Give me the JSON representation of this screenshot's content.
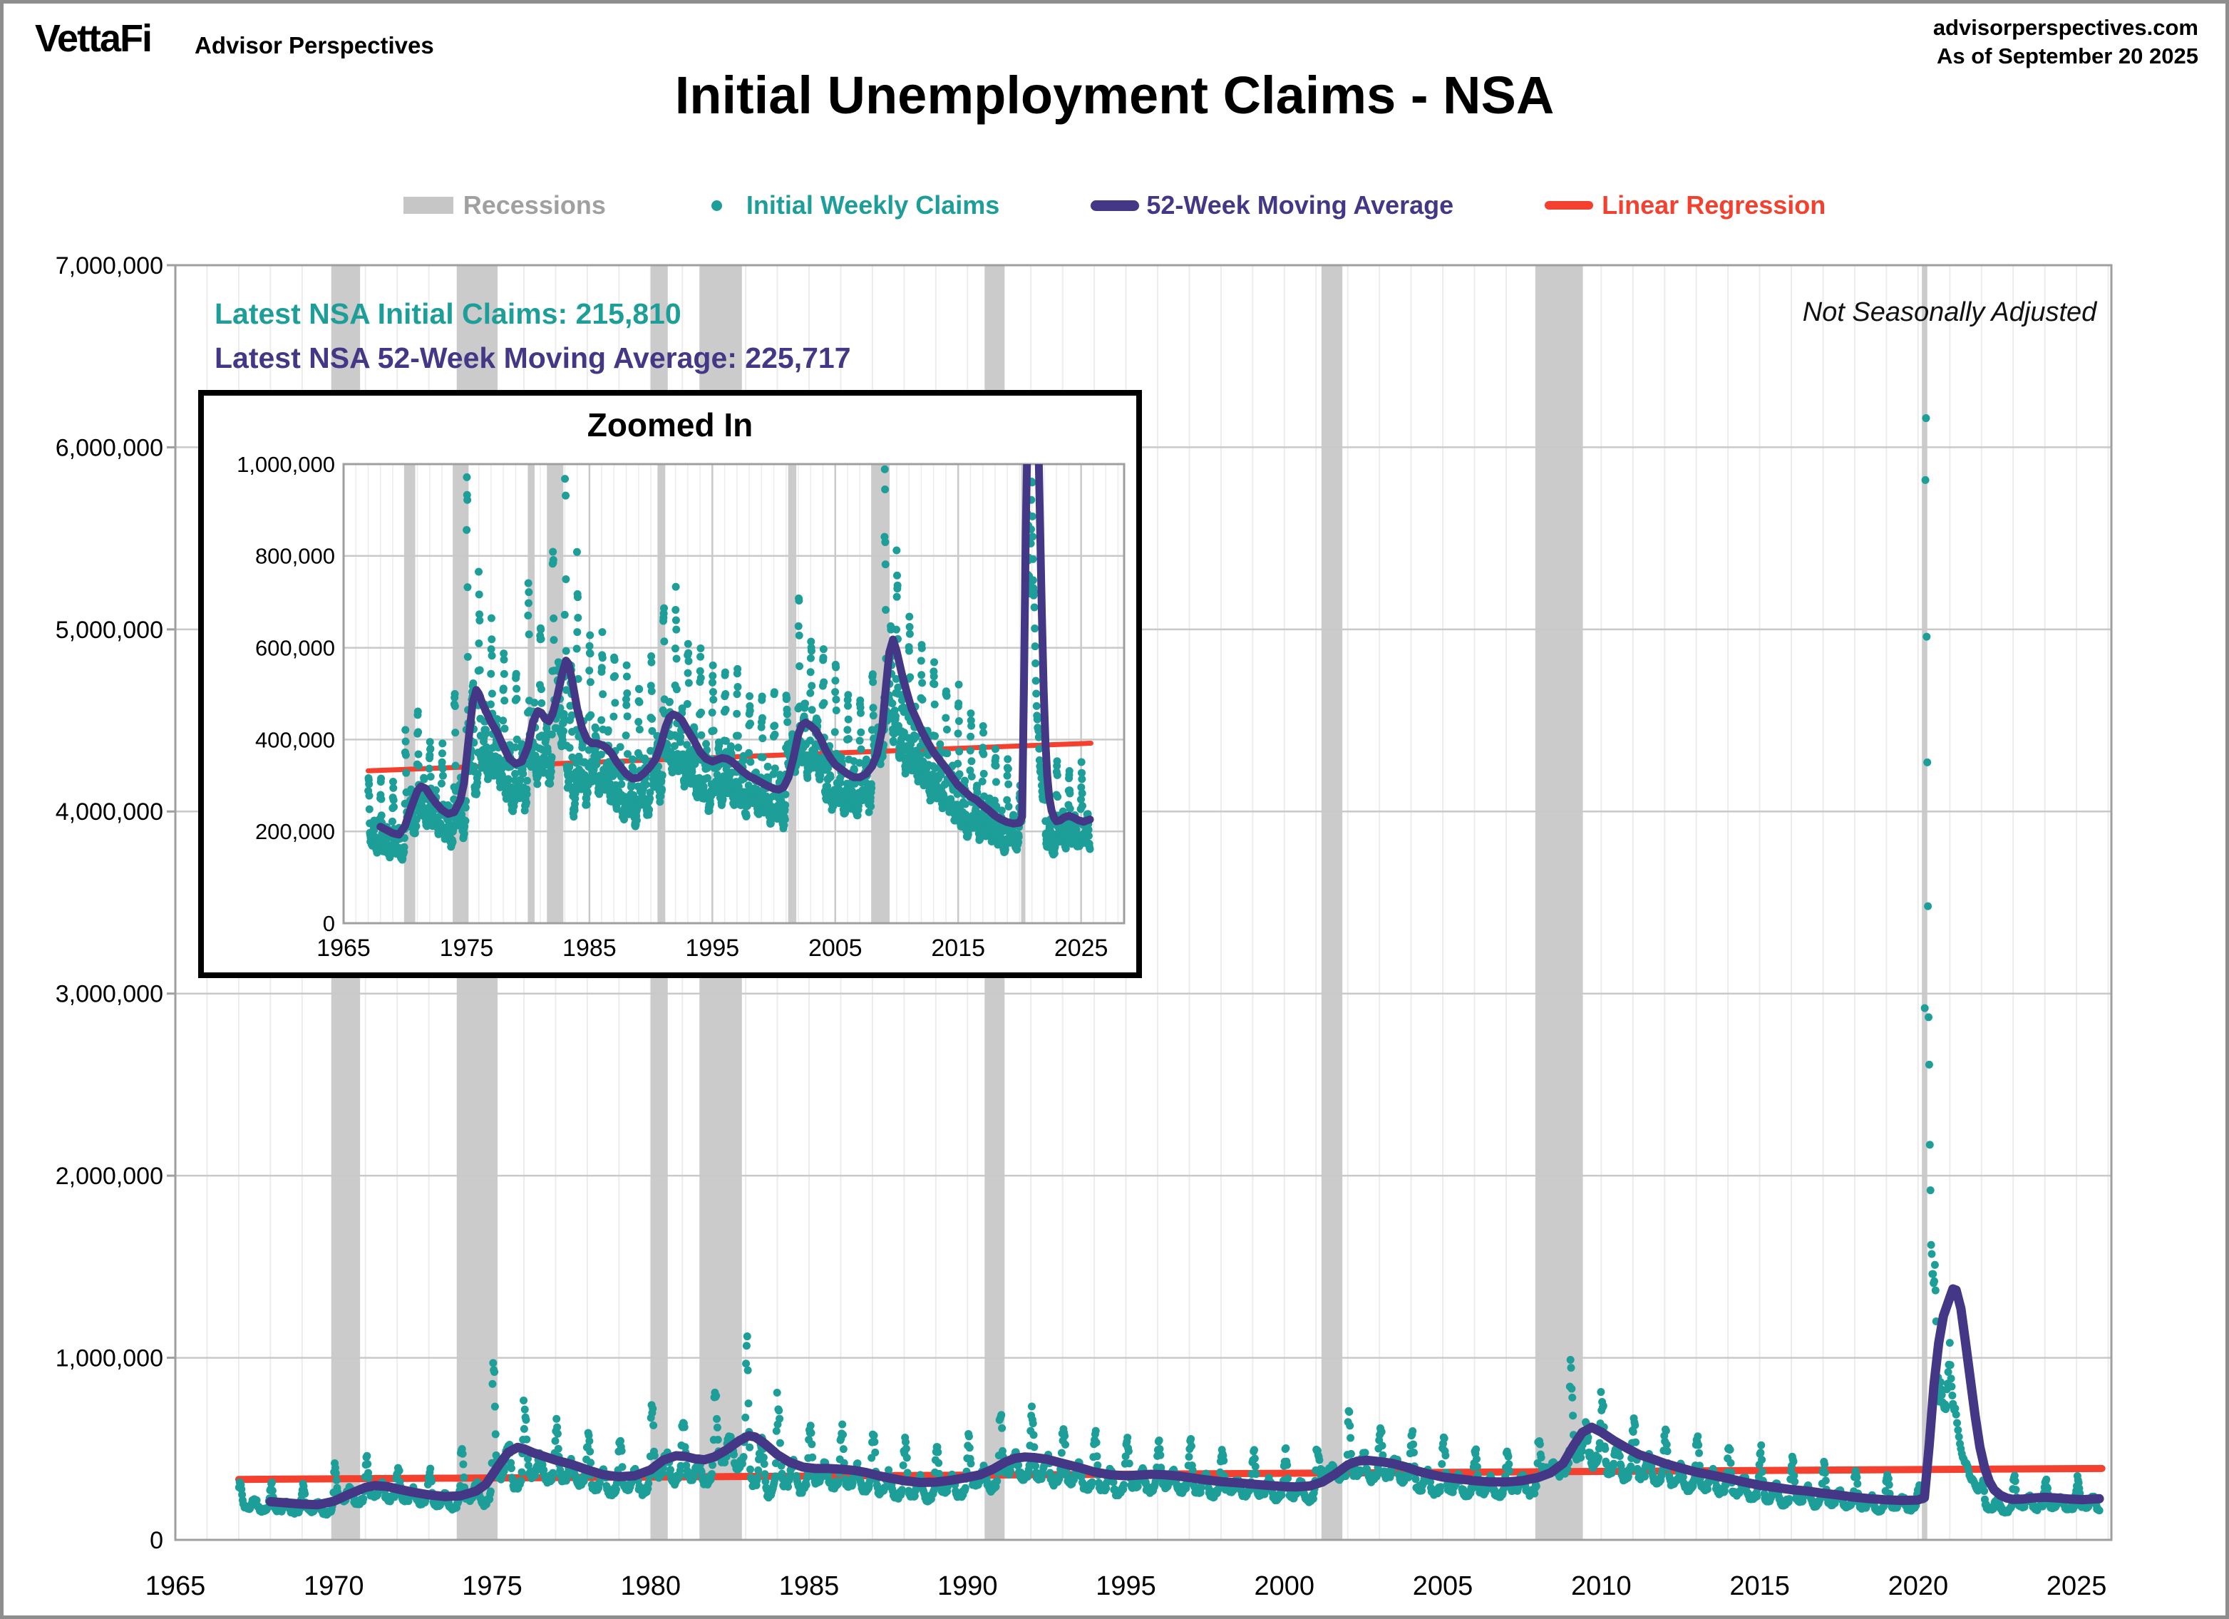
{
  "header": {
    "brand": "VettaFi",
    "brand_sub": "Advisor Perspectives",
    "site": "advisorperspectives.com",
    "as_of": "As of September 20 2025"
  },
  "title": "Initial Unemployment Claims - NSA",
  "inset_title": "Zoomed In",
  "legend": [
    {
      "id": "recessions",
      "label": "Recessions",
      "color": "#c6c6c6"
    },
    {
      "id": "weekly-claims",
      "label": "Initial Weekly Claims",
      "color": "#1d9e99"
    },
    {
      "id": "moving-average",
      "label": "52-Week Moving Average",
      "color": "#443786"
    },
    {
      "id": "linear-regression",
      "label": "Linear Regression",
      "color": "#f4402f"
    }
  ],
  "annotations": {
    "latest_claims_label": "Latest NSA Initial Claims: 215,810",
    "latest_ma_label": "Latest NSA 52-Week Moving Average: 225,717",
    "nsa_note": "Not Seasonally Adjusted"
  },
  "chart_data": {
    "type": "scatter",
    "title": "Initial Unemployment Claims - NSA",
    "series_names": [
      "Initial Weekly Claims",
      "52-Week Moving Average",
      "Linear Regression"
    ],
    "latest": {
      "initial_claims": 215810,
      "moving_average_52wk": 225717
    },
    "colors": {
      "scatter": "#1d9e99",
      "ma": "#443786",
      "regression": "#f4402f",
      "recession_band": "#cbcbcb",
      "grid": "#c9c9c9",
      "grid_faint": "#ececec",
      "axis": "#9f9f9f"
    },
    "main_axis": {
      "x_min": 1965,
      "x_max": 2026.1,
      "y_min": 0,
      "y_max": 7000000,
      "x_ticks": [
        1965,
        1970,
        1975,
        1980,
        1985,
        1990,
        1995,
        2000,
        2005,
        2010,
        2015,
        2020,
        2025
      ],
      "y_tick_labels": [
        "0",
        "1,000,000",
        "2,000,000",
        "3,000,000",
        "4,000,000",
        "5,000,000",
        "6,000,000",
        "7,000,000"
      ]
    },
    "inset_axis": {
      "x_min": 1965,
      "x_max": 2028.5,
      "y_min": 0,
      "y_max": 1000000,
      "x_ticks": [
        1965,
        1975,
        1985,
        1995,
        2005,
        2015,
        2025
      ],
      "y_tick_labels": [
        "0",
        "200,000",
        "400,000",
        "600,000",
        "800,000",
        "1,000,000"
      ]
    },
    "recessions": [
      [
        1969.92,
        1970.83
      ],
      [
        1973.88,
        1975.17
      ],
      [
        1980.0,
        1980.54
      ],
      [
        1981.54,
        1982.88
      ],
      [
        1990.54,
        1991.17
      ],
      [
        2001.17,
        2001.83
      ],
      [
        2007.92,
        2009.42
      ],
      [
        2020.12,
        2020.29
      ]
    ],
    "regression_thousands": {
      "x1": 1967.0,
      "y1": 332,
      "x2": 2025.8,
      "y2": 392
    },
    "ma_series_thousands": [
      [
        1968.0,
        210
      ],
      [
        1968.5,
        203
      ],
      [
        1969.0,
        196
      ],
      [
        1969.5,
        193
      ],
      [
        1970.0,
        212
      ],
      [
        1970.5,
        252
      ],
      [
        1971.0,
        288
      ],
      [
        1971.3,
        298
      ],
      [
        1971.7,
        293
      ],
      [
        1972.0,
        280
      ],
      [
        1972.5,
        262
      ],
      [
        1973.0,
        247
      ],
      [
        1973.5,
        238
      ],
      [
        1974.0,
        242
      ],
      [
        1974.5,
        268
      ],
      [
        1974.8,
        305
      ],
      [
        1975.2,
        408
      ],
      [
        1975.5,
        480
      ],
      [
        1975.8,
        508
      ],
      [
        1976.0,
        500
      ],
      [
        1976.3,
        478
      ],
      [
        1976.7,
        455
      ],
      [
        1977.0,
        438
      ],
      [
        1977.5,
        415
      ],
      [
        1978.0,
        385
      ],
      [
        1978.5,
        358
      ],
      [
        1979.0,
        347
      ],
      [
        1979.5,
        352
      ],
      [
        1980.0,
        385
      ],
      [
        1980.4,
        438
      ],
      [
        1980.8,
        462
      ],
      [
        1981.1,
        458
      ],
      [
        1981.4,
        445
      ],
      [
        1981.7,
        440
      ],
      [
        1982.0,
        455
      ],
      [
        1982.4,
        495
      ],
      [
        1982.8,
        545
      ],
      [
        1983.1,
        572
      ],
      [
        1983.3,
        565
      ],
      [
        1983.6,
        528
      ],
      [
        1984.0,
        468
      ],
      [
        1984.4,
        425
      ],
      [
        1984.8,
        400
      ],
      [
        1985.2,
        392
      ],
      [
        1985.6,
        392
      ],
      [
        1986.0,
        388
      ],
      [
        1986.4,
        382
      ],
      [
        1986.8,
        370
      ],
      [
        1987.2,
        352
      ],
      [
        1987.6,
        338
      ],
      [
        1988.0,
        325
      ],
      [
        1988.5,
        315
      ],
      [
        1989.0,
        317
      ],
      [
        1989.5,
        328
      ],
      [
        1990.0,
        343
      ],
      [
        1990.4,
        358
      ],
      [
        1990.8,
        388
      ],
      [
        1991.2,
        428
      ],
      [
        1991.5,
        448
      ],
      [
        1991.8,
        455
      ],
      [
        1992.1,
        452
      ],
      [
        1992.5,
        443
      ],
      [
        1993.0,
        420
      ],
      [
        1993.5,
        398
      ],
      [
        1994.0,
        373
      ],
      [
        1994.5,
        358
      ],
      [
        1995.0,
        352
      ],
      [
        1995.4,
        356
      ],
      [
        1995.8,
        360
      ],
      [
        1996.2,
        358
      ],
      [
        1996.6,
        352
      ],
      [
        1997.0,
        342
      ],
      [
        1997.5,
        330
      ],
      [
        1998.0,
        320
      ],
      [
        1998.5,
        314
      ],
      [
        1999.0,
        306
      ],
      [
        1999.5,
        299
      ],
      [
        2000.0,
        293
      ],
      [
        2000.4,
        291
      ],
      [
        2000.8,
        296
      ],
      [
        2001.2,
        318
      ],
      [
        2001.6,
        360
      ],
      [
        2002.0,
        412
      ],
      [
        2002.3,
        432
      ],
      [
        2002.6,
        437
      ],
      [
        2003.0,
        430
      ],
      [
        2003.4,
        420
      ],
      [
        2003.8,
        402
      ],
      [
        2004.2,
        378
      ],
      [
        2004.6,
        360
      ],
      [
        2005.0,
        345
      ],
      [
        2005.5,
        335
      ],
      [
        2006.0,
        325
      ],
      [
        2006.5,
        318
      ],
      [
        2007.0,
        318
      ],
      [
        2007.5,
        325
      ],
      [
        2008.0,
        342
      ],
      [
        2008.4,
        368
      ],
      [
        2008.8,
        420
      ],
      [
        2009.1,
        510
      ],
      [
        2009.4,
        590
      ],
      [
        2009.7,
        618
      ],
      [
        2010.0,
        592
      ],
      [
        2010.4,
        545
      ],
      [
        2010.8,
        505
      ],
      [
        2011.2,
        468
      ],
      [
        2011.6,
        445
      ],
      [
        2012.0,
        420
      ],
      [
        2012.5,
        395
      ],
      [
        2013.0,
        372
      ],
      [
        2013.5,
        355
      ],
      [
        2014.0,
        338
      ],
      [
        2014.5,
        318
      ],
      [
        2015.0,
        300
      ],
      [
        2015.5,
        288
      ],
      [
        2016.0,
        276
      ],
      [
        2016.5,
        268
      ],
      [
        2017.0,
        256
      ],
      [
        2017.5,
        246
      ],
      [
        2018.0,
        234
      ],
      [
        2018.5,
        226
      ],
      [
        2019.0,
        220
      ],
      [
        2019.5,
        217
      ],
      [
        2020.0,
        219
      ],
      [
        2020.2,
        232
      ],
      [
        2020.35,
        520
      ],
      [
        2020.5,
        850
      ],
      [
        2020.65,
        1080
      ],
      [
        2020.8,
        1230
      ],
      [
        2021.0,
        1330
      ],
      [
        2021.1,
        1378
      ],
      [
        2021.2,
        1372
      ],
      [
        2021.35,
        1270
      ],
      [
        2021.5,
        1080
      ],
      [
        2021.65,
        880
      ],
      [
        2021.8,
        680
      ],
      [
        2021.95,
        510
      ],
      [
        2022.1,
        395
      ],
      [
        2022.25,
        320
      ],
      [
        2022.4,
        275
      ],
      [
        2022.6,
        245
      ],
      [
        2022.8,
        230
      ],
      [
        2023.0,
        222
      ],
      [
        2023.3,
        224
      ],
      [
        2023.6,
        230
      ],
      [
        2024.0,
        234
      ],
      [
        2024.4,
        230
      ],
      [
        2024.8,
        224
      ],
      [
        2025.2,
        221
      ],
      [
        2025.5,
        224
      ],
      [
        2025.72,
        226
      ]
    ],
    "yearly_scatter_thousands": [
      [
        1967,
        205,
        320
      ],
      [
        1968,
        190,
        300
      ],
      [
        1969,
        188,
        300
      ],
      [
        1970,
        262,
        420
      ],
      [
        1971,
        285,
        450
      ],
      [
        1972,
        258,
        400
      ],
      [
        1973,
        232,
        380
      ],
      [
        1974,
        285,
        520
      ],
      [
        1975,
        470,
        970
      ],
      [
        1976,
        425,
        690
      ],
      [
        1977,
        400,
        640
      ],
      [
        1978,
        345,
        590
      ],
      [
        1979,
        345,
        570
      ],
      [
        1980,
        435,
        740
      ],
      [
        1981,
        405,
        650
      ],
      [
        1982,
        520,
        820
      ],
      [
        1983,
        465,
        1075
      ],
      [
        1984,
        385,
        700
      ],
      [
        1985,
        385,
        630
      ],
      [
        1986,
        370,
        620
      ],
      [
        1987,
        330,
        600
      ],
      [
        1988,
        310,
        550
      ],
      [
        1989,
        325,
        545
      ],
      [
        1990,
        360,
        570
      ],
      [
        1991,
        440,
        700
      ],
      [
        1992,
        420,
        700
      ],
      [
        1993,
        375,
        620
      ],
      [
        1994,
        345,
        590
      ],
      [
        1995,
        350,
        560
      ],
      [
        1996,
        350,
        565
      ],
      [
        1997,
        322,
        530
      ],
      [
        1998,
        312,
        500
      ],
      [
        1999,
        300,
        490
      ],
      [
        2000,
        288,
        480
      ],
      [
        2001,
        390,
        500
      ],
      [
        2002,
        430,
        680
      ],
      [
        2003,
        415,
        640
      ],
      [
        2004,
        345,
        590
      ],
      [
        2005,
        330,
        545
      ],
      [
        2006,
        312,
        500
      ],
      [
        2007,
        318,
        490
      ],
      [
        2008,
        415,
        550
      ],
      [
        2009,
        565,
        956
      ],
      [
        2010,
        462,
        780
      ],
      [
        2011,
        415,
        680
      ],
      [
        2012,
        368,
        600
      ],
      [
        2013,
        342,
        560
      ],
      [
        2014,
        308,
        530
      ],
      [
        2015,
        278,
        500
      ],
      [
        2016,
        262,
        450
      ],
      [
        2017,
        243,
        410
      ],
      [
        2018,
        220,
        380
      ],
      [
        2019,
        217,
        350
      ],
      [
        2022,
        200,
        320
      ],
      [
        2023,
        218,
        340
      ],
      [
        2024,
        213,
        330
      ],
      [
        2025,
        214,
        335
      ]
    ],
    "pandemic_points_thousands": [
      [
        2020.02,
        282
      ],
      [
        2020.04,
        300
      ],
      [
        2020.06,
        268
      ],
      [
        2020.08,
        252
      ],
      [
        2020.1,
        240
      ],
      [
        2020.12,
        230
      ],
      [
        2020.14,
        225
      ],
      [
        2020.16,
        222
      ],
      [
        2020.18,
        250
      ],
      [
        2020.21,
        2920
      ],
      [
        2020.23,
        5820
      ],
      [
        2020.25,
        6160
      ],
      [
        2020.27,
        4960
      ],
      [
        2020.29,
        4270
      ],
      [
        2020.31,
        3480
      ],
      [
        2020.33,
        2870
      ],
      [
        2020.35,
        2610
      ],
      [
        2020.37,
        2170
      ],
      [
        2020.39,
        1920
      ],
      [
        2020.41,
        1620
      ],
      [
        2020.43,
        1570
      ],
      [
        2020.45,
        1460
      ],
      [
        2020.47,
        1460
      ],
      [
        2020.49,
        1410
      ],
      [
        2020.51,
        1420
      ],
      [
        2020.53,
        1510
      ],
      [
        2020.55,
        1370
      ],
      [
        2020.57,
        1200
      ],
      [
        2020.59,
        984
      ],
      [
        2020.61,
        840
      ],
      [
        2020.63,
        892
      ],
      [
        2020.65,
        826
      ],
      [
        2020.67,
        759
      ],
      [
        2020.69,
        790
      ],
      [
        2020.71,
        866
      ],
      [
        2020.73,
        827
      ],
      [
        2020.75,
        796
      ],
      [
        2020.77,
        756
      ],
      [
        2020.79,
        751
      ],
      [
        2020.81,
        738
      ],
      [
        2020.83,
        723
      ],
      [
        2020.85,
        744
      ],
      [
        2020.87,
        718
      ],
      [
        2020.89,
        731
      ],
      [
        2020.91,
        827
      ],
      [
        2020.93,
        858
      ],
      [
        2020.95,
        922
      ],
      [
        2020.97,
        962
      ],
      [
        2021.0,
        1082
      ],
      [
        2021.02,
        960
      ],
      [
        2021.04,
        886
      ],
      [
        2021.06,
        842
      ],
      [
        2021.08,
        793
      ],
      [
        2021.1,
        747
      ],
      [
        2021.12,
        730
      ],
      [
        2021.14,
        714
      ],
      [
        2021.17,
        722
      ],
      [
        2021.2,
        688
      ],
      [
        2021.23,
        642
      ],
      [
        2021.26,
        603
      ],
      [
        2021.29,
        566
      ],
      [
        2021.32,
        528
      ],
      [
        2021.35,
        500
      ],
      [
        2021.38,
        473
      ],
      [
        2021.41,
        452
      ],
      [
        2021.44,
        444
      ],
      [
        2021.47,
        426
      ],
      [
        2021.5,
        424
      ],
      [
        2021.53,
        419
      ],
      [
        2021.56,
        405
      ],
      [
        2021.59,
        380
      ],
      [
        2021.62,
        355
      ],
      [
        2021.65,
        342
      ],
      [
        2021.68,
        330
      ],
      [
        2021.71,
        335
      ],
      [
        2021.74,
        328
      ],
      [
        2021.77,
        316
      ],
      [
        2021.8,
        300
      ],
      [
        2021.83,
        287
      ],
      [
        2021.86,
        276
      ],
      [
        2021.89,
        270
      ],
      [
        2021.92,
        278
      ],
      [
        2021.95,
        288
      ],
      [
        2021.98,
        300
      ]
    ]
  }
}
